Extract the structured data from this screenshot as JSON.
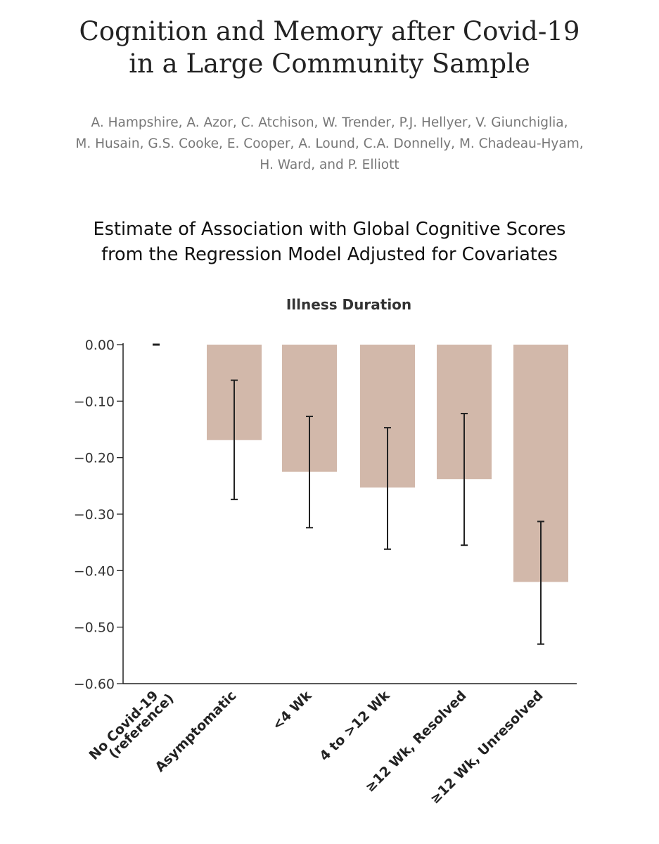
{
  "paper": {
    "title_line1": "Cognition and Memory after Covid-19",
    "title_line2": "in a Large Community Sample",
    "authors_line1": "A. Hampshire, A. Azor, C. Atchison, W. Trender, P.J. Hellyer, V. Giunchiglia,",
    "authors_line2": "M. Husain, G.S. Cooke, E. Cooper, A. Lound, C.A. Donnelly, M. Chadeau-Hyam,",
    "authors_line3": "H. Ward, and P. Elliott",
    "subtitle_line1": "Estimate of Association with Global Cognitive Scores",
    "subtitle_line2": "from the Regression Model Adjusted for Covariates"
  },
  "chart_data": {
    "type": "bar",
    "title": "Illness Duration",
    "xlabel": "",
    "ylabel": "",
    "ylim": [
      -0.6,
      0.0
    ],
    "yticks": [
      "0.00",
      "−0.10",
      "−0.20",
      "−0.30",
      "−0.40",
      "−0.50",
      "−0.60"
    ],
    "ytick_values": [
      0,
      -0.1,
      -0.2,
      -0.3,
      -0.4,
      -0.5,
      -0.6
    ],
    "categories": [
      [
        "No Covid-19",
        "(reference)"
      ],
      [
        "Asymptomatic"
      ],
      [
        "<4 Wk"
      ],
      [
        "4 to >12 Wk"
      ],
      [
        "≥12 Wk, Resolved"
      ],
      [
        "≥12 Wk, Unresolved"
      ]
    ],
    "values": [
      0.0,
      -0.169,
      -0.225,
      -0.253,
      -0.238,
      -0.42
    ],
    "ci_upper": [
      null,
      -0.063,
      -0.127,
      -0.147,
      -0.122,
      -0.313
    ],
    "ci_lower": [
      null,
      -0.274,
      -0.324,
      -0.362,
      -0.355,
      -0.53
    ],
    "bar_color": "#d2b8aa",
    "grid": false
  }
}
